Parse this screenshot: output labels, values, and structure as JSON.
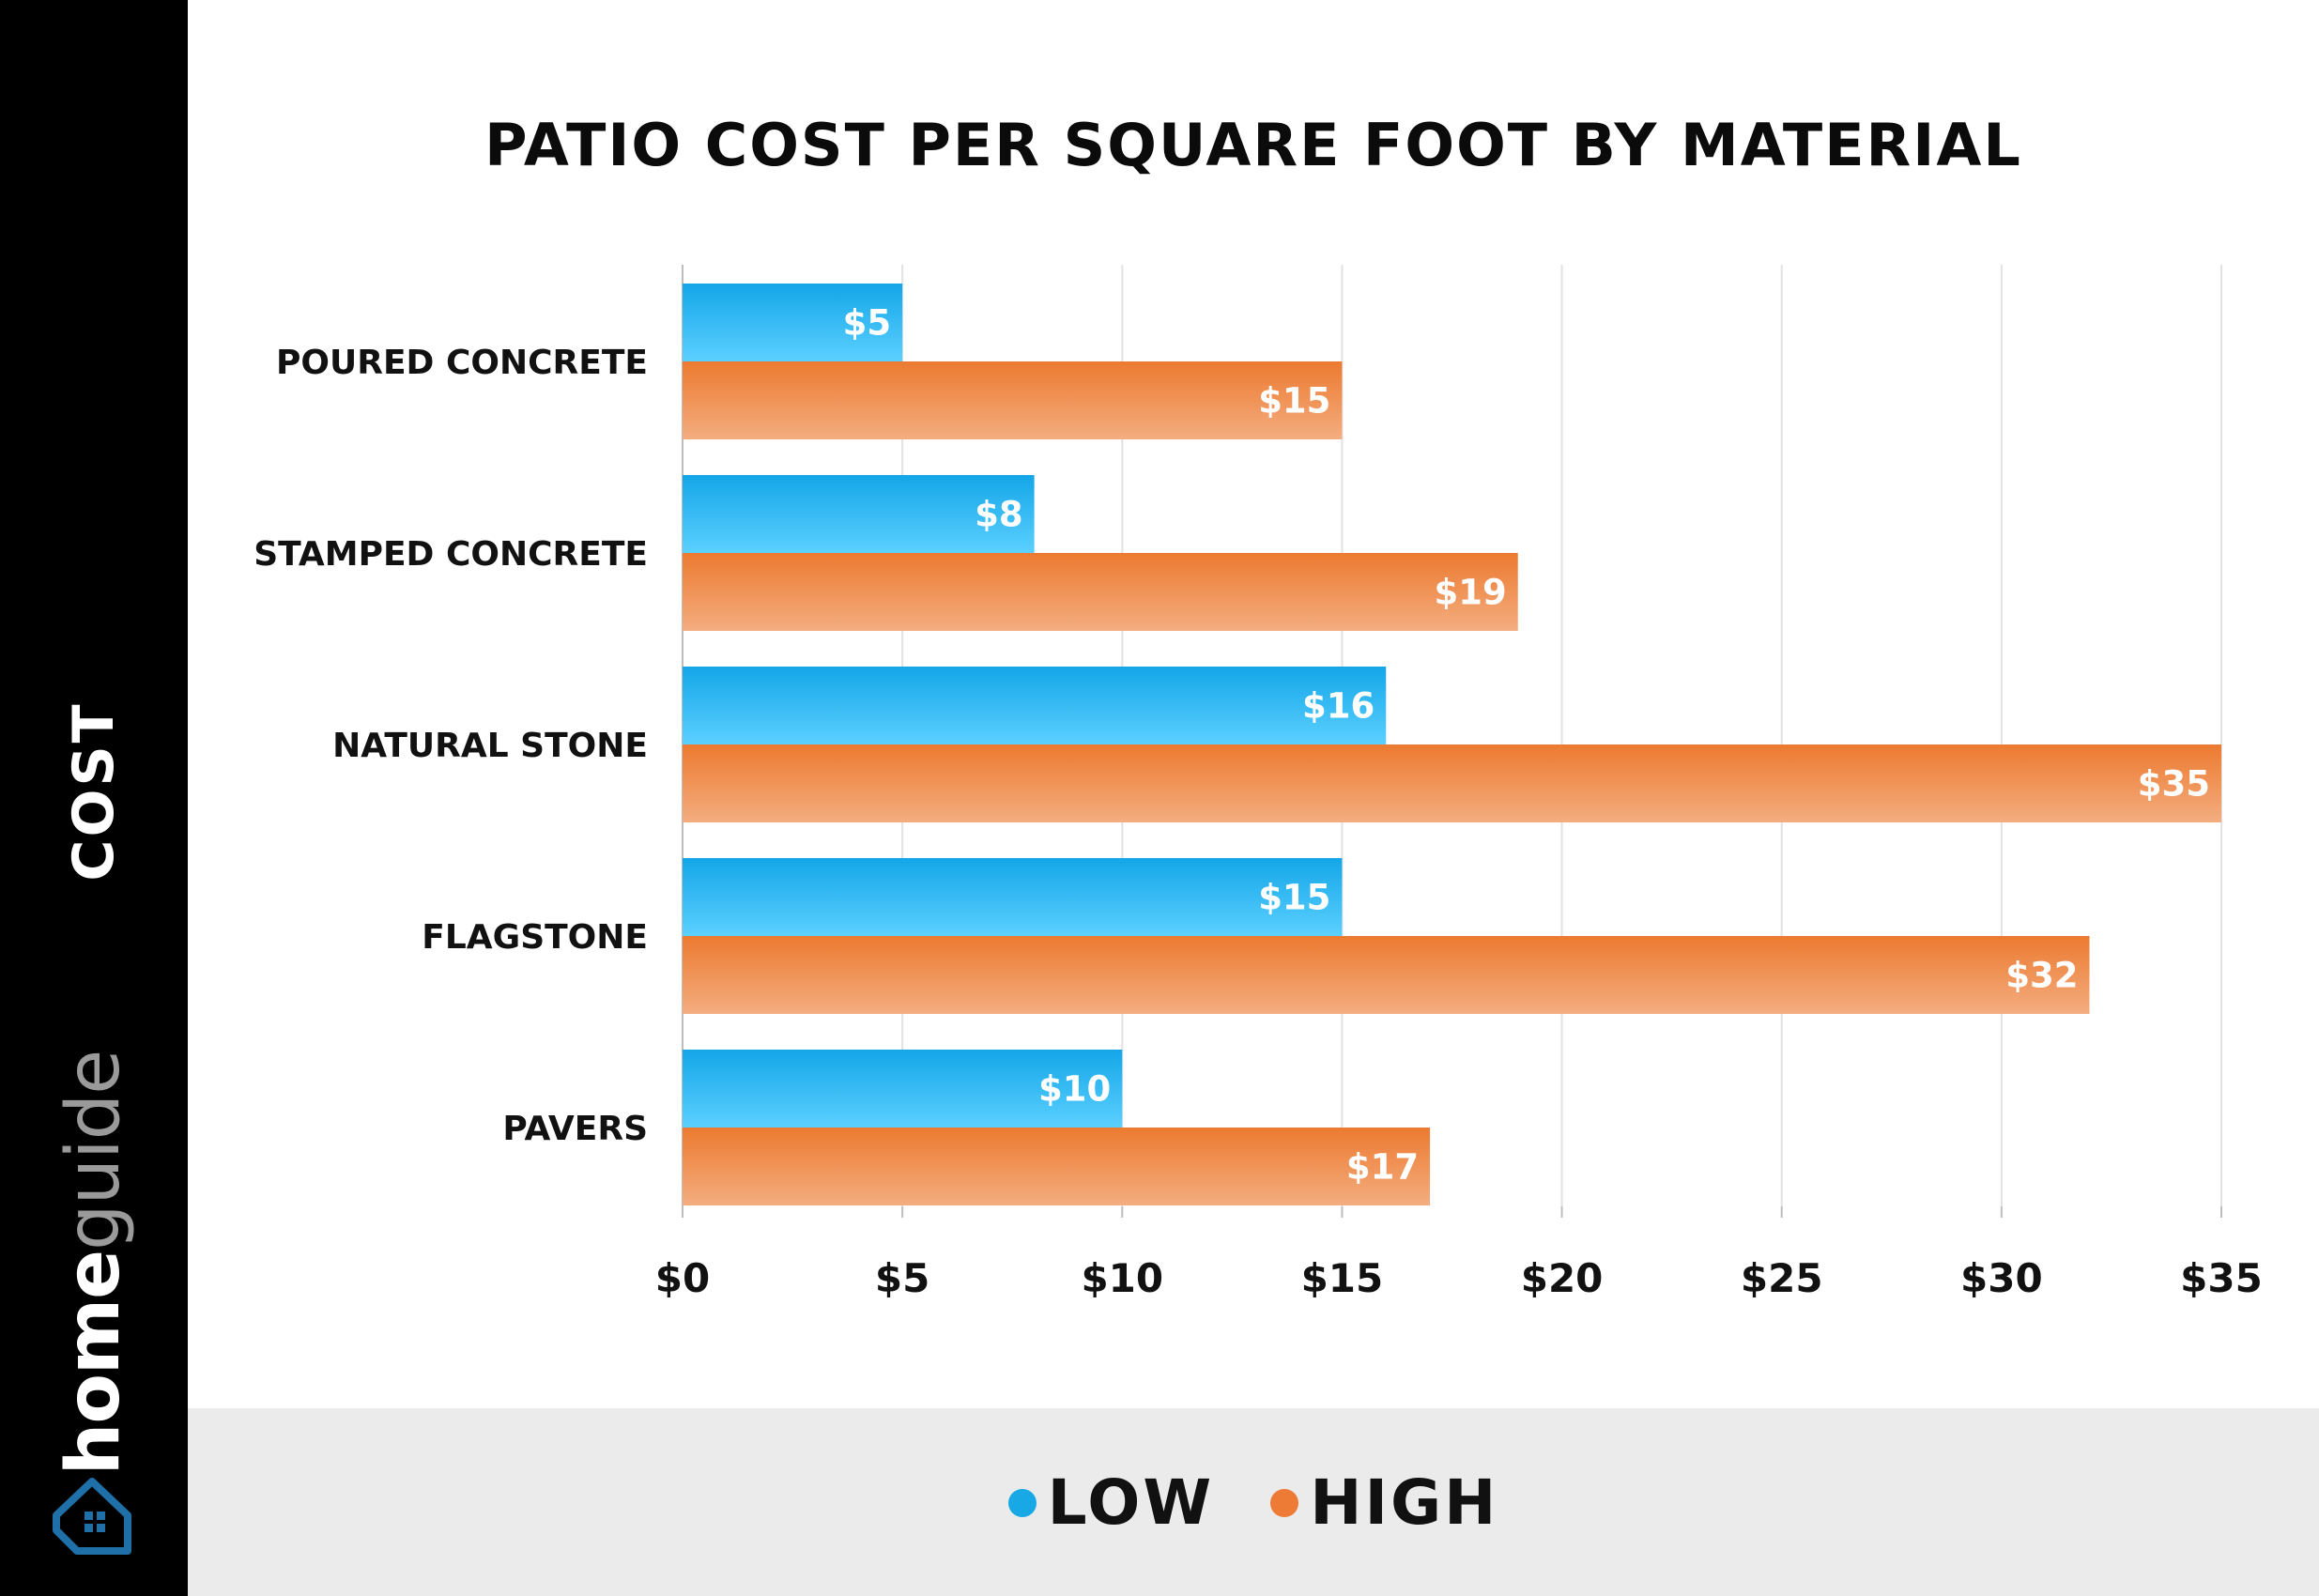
{
  "sidebar": {
    "label": "COST",
    "brand_home": "home",
    "brand_guide": "guide",
    "logo_icon": "house-icon"
  },
  "colors": {
    "low_top": "#14a6e8",
    "low_bottom": "#5bd0ff",
    "high_top": "#ec7a30",
    "high_bottom": "#f4ad80",
    "low_dot": "#18a8e6",
    "high_dot": "#ee7b35"
  },
  "chart_data": {
    "type": "bar",
    "orientation": "horizontal",
    "title": "PATIO COST PER SQUARE FOOT BY MATERIAL",
    "categories": [
      "POURED CONCRETE",
      "STAMPED CONCRETE",
      "NATURAL STONE",
      "FLAGSTONE",
      "PAVERS"
    ],
    "series": [
      {
        "name": "LOW",
        "values": [
          5,
          8,
          16,
          15,
          10
        ],
        "labels": [
          "$5",
          "$8",
          "$16",
          "$15",
          "$10"
        ]
      },
      {
        "name": "HIGH",
        "values": [
          15,
          19,
          35,
          32,
          17
        ],
        "labels": [
          "$15",
          "$19",
          "$35",
          "$32",
          "$17"
        ]
      }
    ],
    "xlim": [
      0,
      35
    ],
    "xticks": [
      0,
      5,
      10,
      15,
      20,
      25,
      30,
      35
    ],
    "xtick_labels": [
      "$0",
      "$5",
      "$10",
      "$15",
      "$20",
      "$25",
      "$30",
      "$35"
    ],
    "grid": true,
    "legend_position": "bottom"
  }
}
